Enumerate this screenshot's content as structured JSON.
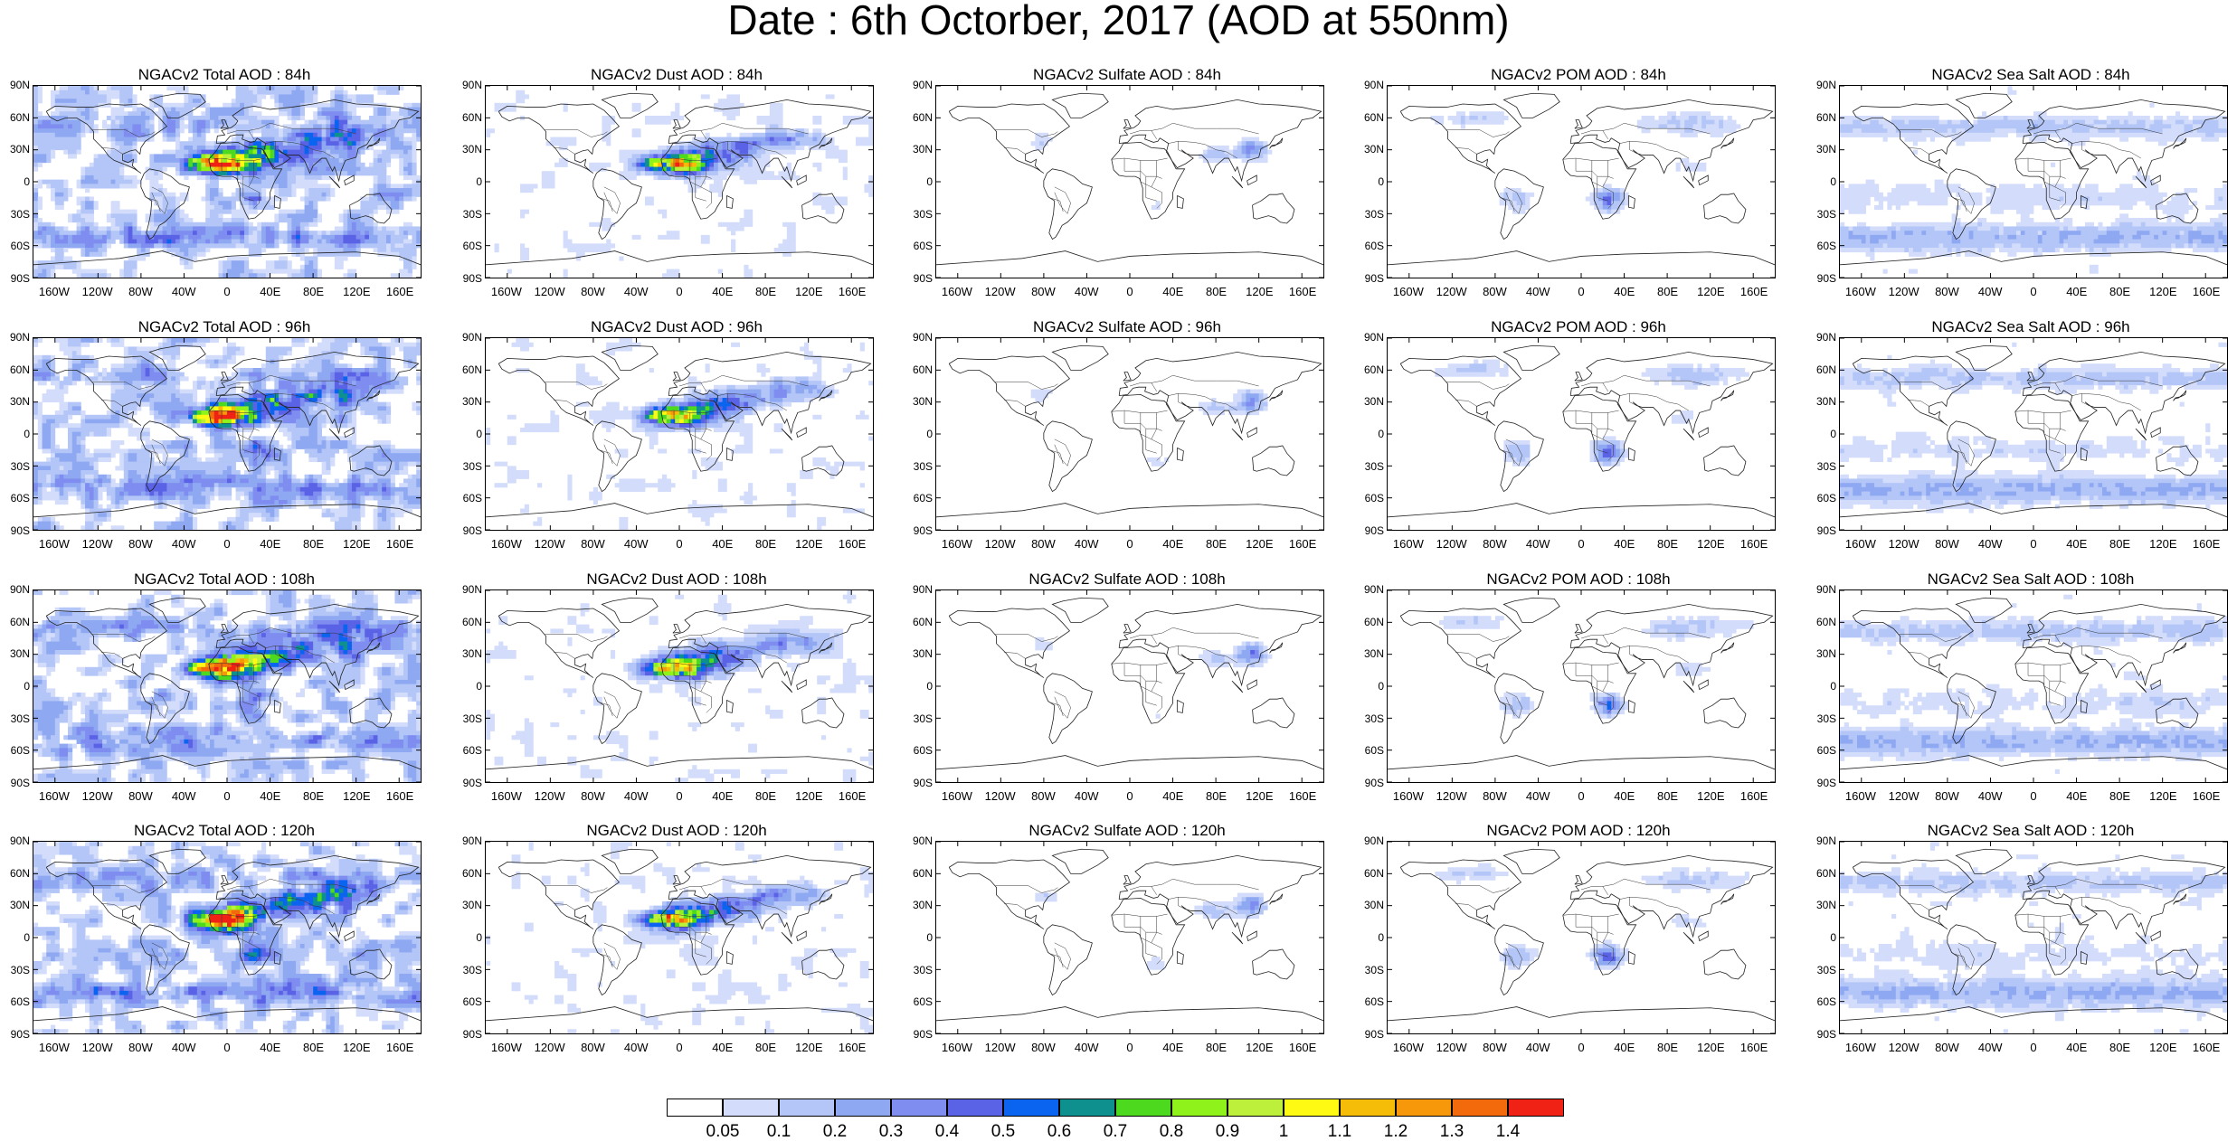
{
  "title": "Date : 6th Octorber, 2017 (AOD at 550nm)",
  "lat_labels": [
    "90N",
    "60N",
    "30N",
    "0",
    "30S",
    "60S",
    "90S"
  ],
  "lon_labels": [
    "160W",
    "120W",
    "80W",
    "40W",
    "0",
    "40E",
    "80E",
    "120E",
    "160E"
  ],
  "lat_ticks": [
    90,
    60,
    30,
    0,
    -30,
    -60,
    -90
  ],
  "lon_ticks": [
    -160,
    -120,
    -80,
    -40,
    0,
    40,
    80,
    120,
    160
  ],
  "panels": [
    {
      "title": "NGACv2 Total AOD : 84h",
      "species": "total",
      "lead": "84h"
    },
    {
      "title": "NGACv2 Dust AOD : 84h",
      "species": "dust",
      "lead": "84h"
    },
    {
      "title": "NGACv2 Sulfate AOD : 84h",
      "species": "sulfate",
      "lead": "84h"
    },
    {
      "title": "NGACv2 POM AOD : 84h",
      "species": "pom",
      "lead": "84h"
    },
    {
      "title": "NGACv2 Sea Salt AOD : 84h",
      "species": "seasalt",
      "lead": "84h"
    },
    {
      "title": "NGACv2 Total AOD : 96h",
      "species": "total",
      "lead": "96h"
    },
    {
      "title": "NGACv2 Dust AOD : 96h",
      "species": "dust",
      "lead": "96h"
    },
    {
      "title": "NGACv2 Sulfate AOD : 96h",
      "species": "sulfate",
      "lead": "96h"
    },
    {
      "title": "NGACv2 POM AOD : 96h",
      "species": "pom",
      "lead": "96h"
    },
    {
      "title": "NGACv2 Sea Salt AOD : 96h",
      "species": "seasalt",
      "lead": "96h"
    },
    {
      "title": "NGACv2 Total AOD : 108h",
      "species": "total",
      "lead": "108h"
    },
    {
      "title": "NGACv2 Dust AOD : 108h",
      "species": "dust",
      "lead": "108h"
    },
    {
      "title": "NGACv2 Sulfate AOD : 108h",
      "species": "sulfate",
      "lead": "108h"
    },
    {
      "title": "NGACv2 POM AOD : 108h",
      "species": "pom",
      "lead": "108h"
    },
    {
      "title": "NGACv2 Sea Salt AOD : 108h",
      "species": "seasalt",
      "lead": "108h"
    },
    {
      "title": "NGACv2 Total AOD : 120h",
      "species": "total",
      "lead": "120h"
    },
    {
      "title": "NGACv2 Dust AOD : 120h",
      "species": "dust",
      "lead": "120h"
    },
    {
      "title": "NGACv2 Sulfate AOD : 120h",
      "species": "sulfate",
      "lead": "120h"
    },
    {
      "title": "NGACv2 POM AOD : 120h",
      "species": "pom",
      "lead": "120h"
    },
    {
      "title": "NGACv2 Sea Salt  AOD : 120h",
      "species": "seasalt",
      "lead": "120h"
    }
  ],
  "colorbar": {
    "labels": [
      "0.05",
      "0.1",
      "0.2",
      "0.3",
      "0.4",
      "0.5",
      "0.6",
      "0.7",
      "0.8",
      "0.9",
      "1",
      "1.1",
      "1.2",
      "1.3",
      "1.4"
    ],
    "colors": [
      "#ffffff",
      "#d3ddfb",
      "#b3c6f7",
      "#8fa8f2",
      "#7f8df0",
      "#5a62e6",
      "#0a64f0",
      "#0e918e",
      "#4cd91e",
      "#8ff21a",
      "#bdf03a",
      "#fffa14",
      "#f5bd08",
      "#f7980a",
      "#f26a0c",
      "#f02215"
    ]
  },
  "chart_data": {
    "type": "heatmap",
    "title": "Date : 6th Octorber, 2017 (AOD at 550nm)",
    "variables": [
      "Total AOD",
      "Dust AOD",
      "Sulfate AOD",
      "POM AOD",
      "Sea Salt AOD"
    ],
    "forecast_leads": [
      "84h",
      "96h",
      "108h",
      "120h"
    ],
    "lat_range": [
      -90,
      90
    ],
    "lon_range": [
      -180,
      180
    ],
    "levels": [
      0.05,
      0.1,
      0.2,
      0.3,
      0.4,
      0.5,
      0.6,
      0.7,
      0.8,
      0.9,
      1,
      1.1,
      1.2,
      1.3,
      1.4
    ]
  }
}
